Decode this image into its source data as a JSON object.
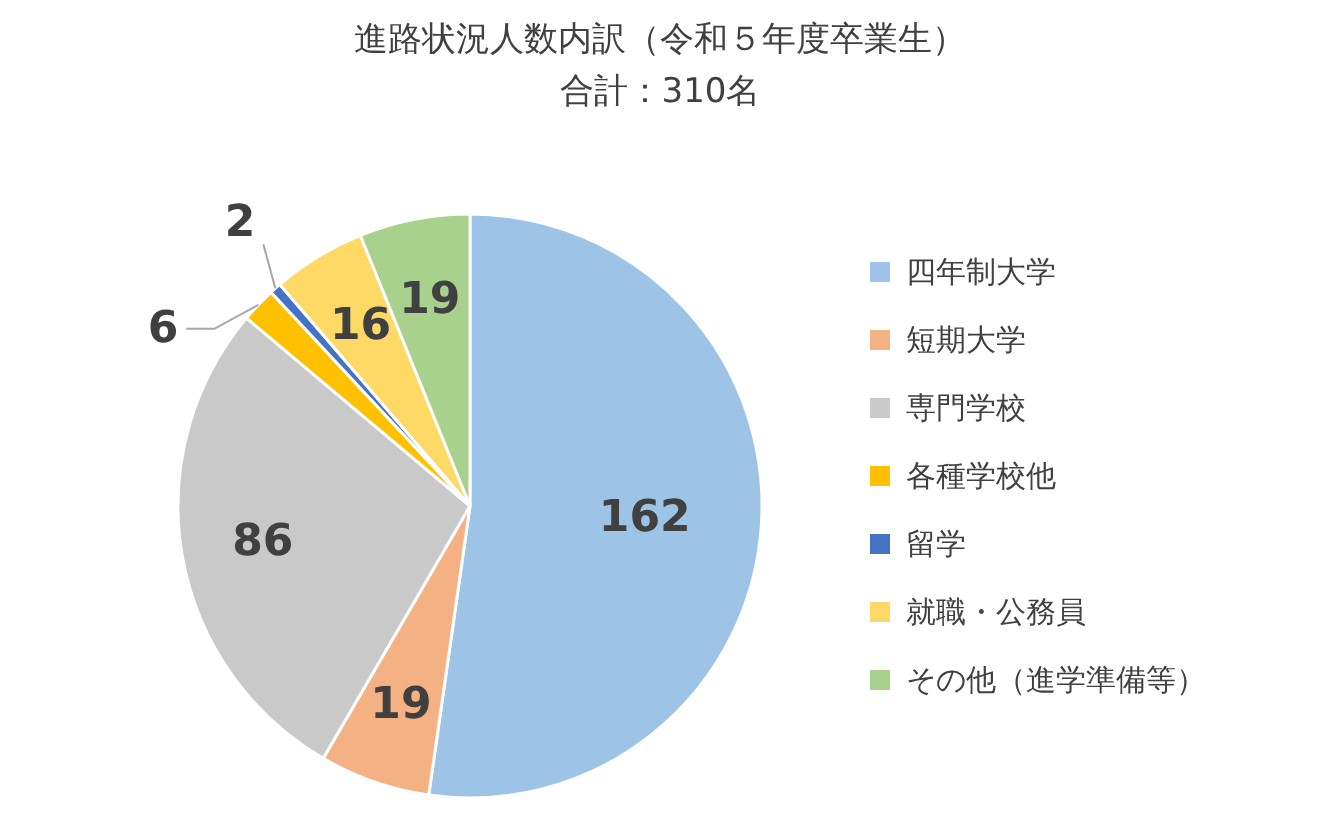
{
  "chart_data": {
    "type": "pie",
    "title": "進路状況人数内訳（令和５年度卒業生）",
    "subtitle": "合計：310名",
    "categories": [
      "四年制大学",
      "短期大学",
      "専門学校",
      "各種学校他",
      "留学",
      "就職・公務員",
      "その他（進学準備等）"
    ],
    "values": [
      162,
      19,
      86,
      6,
      2,
      16,
      19
    ],
    "colors": [
      "#9dc3e6",
      "#f4b183",
      "#c9c9c9",
      "#ffc000",
      "#4472c4",
      "#ffd966",
      "#a9d18e"
    ],
    "data_labels": true,
    "legend": "right"
  }
}
